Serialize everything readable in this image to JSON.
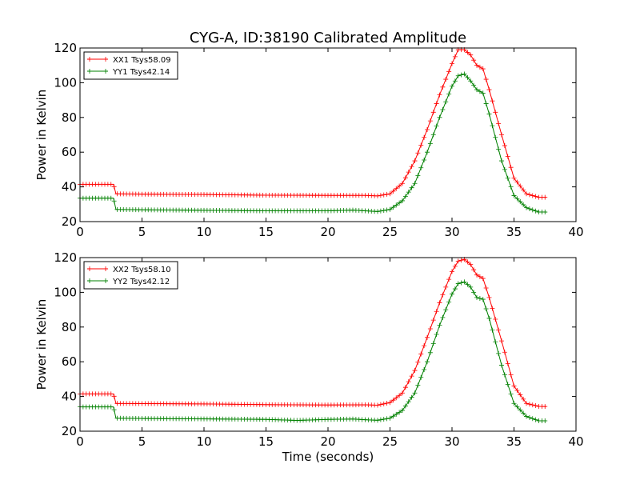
{
  "chart_data": [
    {
      "type": "line",
      "title": "CYG-A, ID:38190 Calibrated Amplitude",
      "xlabel": "",
      "ylabel": "Power in Kelvin",
      "xlim": [
        0,
        40
      ],
      "ylim": [
        20,
        120
      ],
      "xticks": [
        "0",
        "5",
        "10",
        "15",
        "20",
        "25",
        "30",
        "35",
        "40"
      ],
      "yticks": [
        "20",
        "40",
        "60",
        "80",
        "100",
        "120"
      ],
      "grid": false,
      "legend": "top-left",
      "series": [
        {
          "name": "XX1 Tsys58.09",
          "color": "#ff0000",
          "x": [
            0,
            2.7,
            2.9,
            5,
            10,
            15,
            20,
            23,
            24,
            25,
            26,
            27,
            28,
            29,
            30,
            30.5,
            31,
            31.5,
            32,
            32.5,
            33,
            34,
            35,
            36,
            37,
            37.6
          ],
          "y": [
            41.5,
            41.5,
            36,
            35.8,
            35.6,
            35.2,
            35.1,
            35.1,
            34.8,
            36,
            42,
            55,
            73,
            93,
            111,
            119,
            119,
            116,
            110,
            108,
            96,
            70,
            45,
            36,
            34,
            34
          ]
        },
        {
          "name": "YY1 Tsys42.14",
          "color": "#008000",
          "x": [
            0,
            2.7,
            2.9,
            5,
            10,
            15,
            20,
            22,
            23,
            24,
            25,
            26,
            27,
            28,
            29,
            30,
            30.5,
            31,
            31.5,
            32,
            32.5,
            33,
            34,
            35,
            36,
            37,
            37.6
          ],
          "y": [
            33.5,
            33.5,
            27,
            26.8,
            26.5,
            26.2,
            26.2,
            26.6,
            26.2,
            25.8,
            27,
            32,
            42,
            60,
            80,
            98,
            104,
            105,
            101,
            96,
            94,
            82,
            55,
            35,
            28,
            25.5,
            25.5
          ]
        }
      ]
    },
    {
      "type": "line",
      "title": "",
      "xlabel": "Time (seconds)",
      "ylabel": "Power in Kelvin",
      "xlim": [
        0,
        40
      ],
      "ylim": [
        20,
        120
      ],
      "xticks": [
        "0",
        "5",
        "10",
        "15",
        "20",
        "25",
        "30",
        "35",
        "40"
      ],
      "yticks": [
        "20",
        "40",
        "60",
        "80",
        "100",
        "120"
      ],
      "grid": false,
      "legend": "top-left",
      "series": [
        {
          "name": "XX2 Tsys58.10",
          "color": "#ff0000",
          "x": [
            0,
            2.7,
            2.9,
            5,
            10,
            15,
            20,
            23,
            24,
            25,
            26,
            27,
            28,
            29,
            30,
            30.5,
            31,
            31.5,
            32,
            32.5,
            33,
            34,
            35,
            36,
            37,
            37.6
          ],
          "y": [
            41.5,
            41.5,
            36,
            35.9,
            35.7,
            35.3,
            35.1,
            35.2,
            35,
            36.5,
            42,
            55,
            74,
            94,
            112,
            118,
            119,
            116,
            110,
            108,
            97,
            72,
            46,
            36,
            34.3,
            34.2
          ]
        },
        {
          "name": "YY2 Tsys42.12",
          "color": "#008000",
          "x": [
            0,
            2.7,
            2.9,
            5,
            10,
            15,
            17.5,
            20,
            22,
            23,
            24,
            25,
            26,
            27,
            28,
            29,
            30,
            30.5,
            31,
            31.5,
            32,
            32.5,
            33,
            34,
            35,
            36,
            37,
            37.6
          ],
          "y": [
            34,
            34,
            27.5,
            27.3,
            27.1,
            26.8,
            26.2,
            26.8,
            27,
            26.6,
            26.3,
            27.5,
            32,
            42,
            60,
            81,
            99,
            105,
            106,
            103,
            97,
            96,
            85,
            58,
            36,
            28.5,
            26,
            26
          ]
        }
      ]
    }
  ]
}
